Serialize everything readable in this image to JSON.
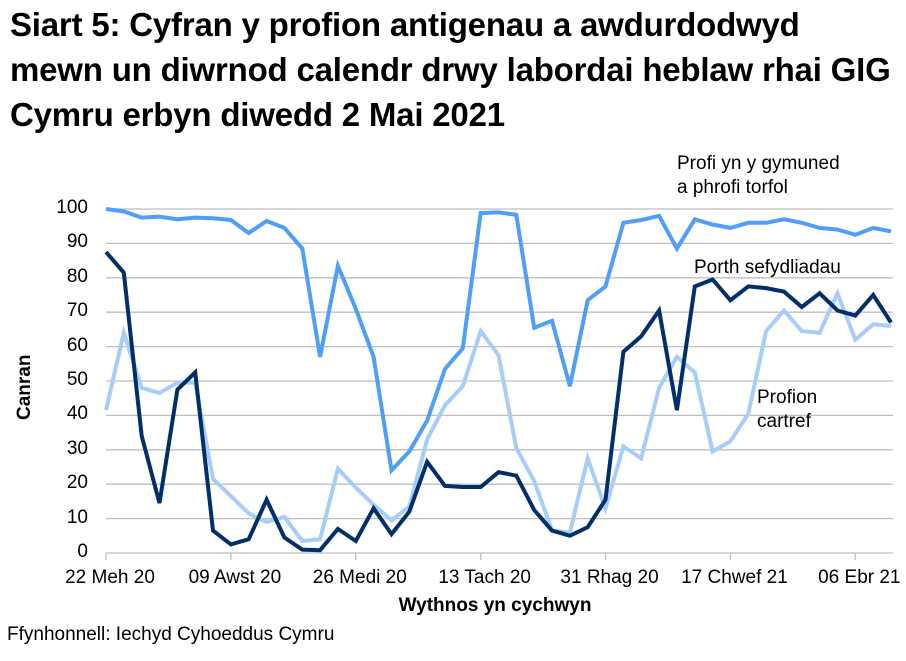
{
  "title": "Siart 5: Cyfran y profion antigenau a awdurdodwyd mewn un diwrnod calendr drwy labordai heblaw rhai GIG Cymru erbyn diwedd 2 Mai 2021",
  "source": "Ffynhonnell: Iechyd Cyhoeddus Cymru",
  "colors": {
    "community": "#4f9ef8",
    "porth": "#002f6c",
    "home": "#a8cdfa",
    "grid": "#bfbfbf"
  },
  "chart_data": {
    "type": "line",
    "title": "Siart 5: Cyfran y profion antigenau a awdurdodwyd mewn un diwrnod calendr drwy labordai heblaw rhai GIG Cymru erbyn diwedd 2 Mai 2021",
    "xlabel": "Wythnos yn cychwyn",
    "ylabel": "Canran",
    "ylim": [
      0,
      100
    ],
    "yticks": [
      0,
      10,
      20,
      30,
      40,
      50,
      60,
      70,
      80,
      90,
      100
    ],
    "grid": true,
    "legend_position": "inline labels",
    "x_tick_labels": [
      "22 Meh 20",
      "09 Awst 20",
      "26 Medi 20",
      "13 Tach 20",
      "31 Rhag 20",
      "17 Chwef 21",
      "06 Ebr 21"
    ],
    "x_tick_index": [
      0,
      7,
      14,
      21,
      28,
      35,
      42
    ],
    "x_note": "weekly points starting 22 Meh 20 (45 weeks)",
    "series": [
      {
        "name": "Profi yn y gymuned a phrofi torfol",
        "values": [
          100,
          99.3,
          97.5,
          97.8,
          97,
          97.5,
          97.3,
          96.8,
          93,
          96.5,
          94.5,
          88.5,
          57,
          83.5,
          71,
          57,
          24,
          29.5,
          38.5,
          53.5,
          59.5,
          98.8,
          99,
          98.3,
          65.5,
          67.5,
          48.5,
          73.5,
          77.5,
          96,
          96.8,
          98,
          88.5,
          97,
          95.5,
          94.5,
          96,
          96,
          97,
          96,
          94.5,
          94,
          92.5,
          94.5,
          93.5
        ]
      },
      {
        "name": "Porth sefydliadau",
        "values": [
          87.5,
          81.5,
          34,
          14.5,
          47.5,
          52.5,
          6.5,
          2.5,
          4,
          15.5,
          4.5,
          1,
          0.8,
          7,
          3.5,
          13,
          5.5,
          12,
          26.5,
          19.5,
          19.2,
          19.2,
          23.5,
          22.5,
          12.5,
          6.5,
          5,
          7.5,
          15.5,
          58.5,
          63,
          70.5,
          41.5,
          77.5,
          79.5,
          73.5,
          77.5,
          77,
          76,
          71.5,
          75.5,
          70.5,
          69,
          75,
          67
        ]
      },
      {
        "name": "Profion cartref",
        "values": [
          41.5,
          64,
          48,
          46.5,
          49.5,
          49.5,
          21.5,
          16.5,
          11.5,
          9,
          10.5,
          3.5,
          4,
          24.5,
          19,
          14,
          9.5,
          13.5,
          33,
          43,
          48.5,
          64.5,
          57.5,
          30.5,
          21,
          6.5,
          6,
          27.5,
          13,
          31,
          27.5,
          48,
          57,
          52.5,
          29.5,
          32.5,
          40.5,
          64.5,
          70.5,
          64.5,
          64,
          75.5,
          62,
          66.5,
          66
        ]
      }
    ]
  },
  "annotations": {
    "community_line1": "Profi yn y gymuned",
    "community_line2": "a phrofi torfol",
    "porth": "Porth sefydliadau",
    "home_line1": "Profion",
    "home_line2": "cartref"
  }
}
